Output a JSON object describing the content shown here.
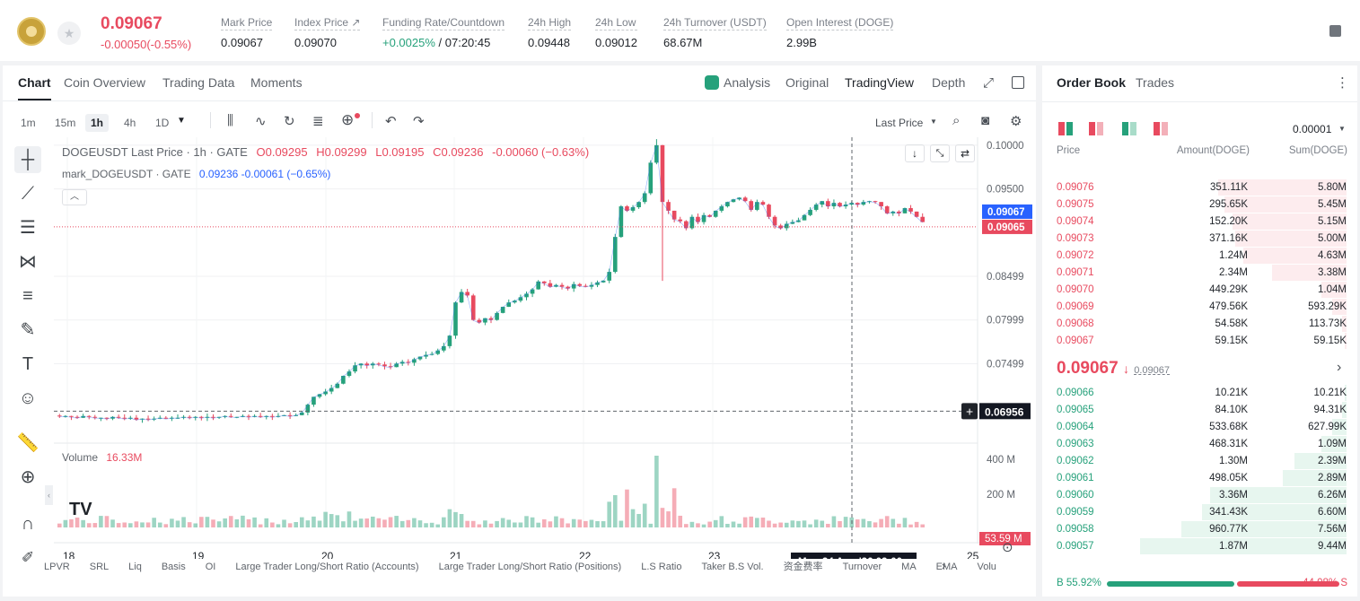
{
  "header": {
    "price": "0.09067",
    "change": "-0.00050(-0.55%)",
    "stats": [
      {
        "label": "Mark Price",
        "value": "0.09067"
      },
      {
        "label": "Index Price ↗",
        "value": "0.09070"
      },
      {
        "label": "Funding Rate/Countdown",
        "value_up": "+0.0025%",
        "value": " / 07:20:45"
      },
      {
        "label": "24h High",
        "value": "0.09448"
      },
      {
        "label": "24h Low",
        "value": "0.09012"
      },
      {
        "label": "24h Turnover (USDT)",
        "value": "68.67M"
      },
      {
        "label": "Open Interest (DOGE)",
        "value": "2.99B"
      }
    ]
  },
  "chart_tabs": [
    "Chart",
    "Coin Overview",
    "Trading Data",
    "Moments"
  ],
  "view_tabs": [
    "Analysis",
    "Original",
    "TradingView",
    "Depth"
  ],
  "intervals": [
    "1m",
    "15m",
    "1h",
    "4h",
    "1D"
  ],
  "last_price_select": "Last Price",
  "legend": {
    "symbol": "DOGEUSDT Last Price · 1h · GATE",
    "o": "O0.09295",
    "h": "H0.09299",
    "l": "L0.09195",
    "c": "C0.09236",
    "chg": "-0.00060 (−0.63%)",
    "mark": "mark_DOGEUSDT · GATE",
    "mark_vals": "0.09236  -0.00061 (−0.65%)",
    "volume_label": "Volume",
    "volume_val": "16.33M"
  },
  "chart_data": {
    "type": "candlestick",
    "x_labels": [
      "18",
      "19",
      "20",
      "21",
      "22",
      "23",
      "25"
    ],
    "y_labels": [
      "0.10000",
      "0.09500",
      "0.08499",
      "0.07999",
      "0.07499"
    ],
    "volume_labels": [
      "400 M",
      "200 M"
    ],
    "price_tags": [
      "0.09067",
      "0.09065"
    ],
    "crosshair_price": "0.06956",
    "crosshair_vol": "53.59 M",
    "crosshair_time": "Mon 24 Aug '26    02:00",
    "ylim": [
      0.066,
      0.1005
    ],
    "close_path": [
      0.069,
      0.069,
      0.0689,
      0.0688,
      0.069,
      0.0689,
      0.0688,
      0.0688,
      0.0687,
      0.0689,
      0.0688,
      0.0687,
      0.0688,
      0.0686,
      0.0687,
      0.0686,
      0.0687,
      0.0688,
      0.0687,
      0.0688,
      0.0688,
      0.0689,
      0.0688,
      0.0689,
      0.0688,
      0.0689,
      0.0688,
      0.0689,
      0.069,
      0.0689,
      0.0689,
      0.069,
      0.0689,
      0.069,
      0.0689,
      0.069,
      0.0689,
      0.069,
      0.0691,
      0.069,
      0.0691,
      0.0694,
      0.0703,
      0.0712,
      0.0715,
      0.0718,
      0.0722,
      0.0727,
      0.0736,
      0.0741,
      0.0748,
      0.075,
      0.0748,
      0.075,
      0.0749,
      0.0747,
      0.0746,
      0.075,
      0.0752,
      0.0751,
      0.0755,
      0.0758,
      0.076,
      0.0761,
      0.0765,
      0.077,
      0.0782,
      0.082,
      0.0832,
      0.0828,
      0.08,
      0.0797,
      0.0802,
      0.08,
      0.0808,
      0.0815,
      0.082,
      0.0822,
      0.0826,
      0.083,
      0.0835,
      0.0844,
      0.0842,
      0.0838,
      0.084,
      0.0838,
      0.0836,
      0.0841,
      0.0839,
      0.0838,
      0.084,
      0.0843,
      0.0845,
      0.0855,
      0.0895,
      0.093,
      0.0925,
      0.0929,
      0.0935,
      0.0945,
      0.098,
      0.1,
      0.0935,
      0.0925,
      0.0915,
      0.0913,
      0.0905,
      0.0918,
      0.0912,
      0.092,
      0.0918,
      0.0925,
      0.093,
      0.0935,
      0.0938,
      0.094,
      0.0936,
      0.0926,
      0.0935,
      0.0932,
      0.0918,
      0.0908,
      0.0905,
      0.091,
      0.0912,
      0.0914,
      0.092,
      0.0926,
      0.0932,
      0.0936,
      0.093,
      0.0934,
      0.093,
      0.0932,
      0.0934,
      0.0932,
      0.0935,
      0.0936,
      0.0935,
      0.093,
      0.0922,
      0.0924,
      0.0922,
      0.0928,
      0.0924,
      0.0918,
      0.0912
    ]
  },
  "bottom_indicators": [
    "LPVR",
    "SRL",
    "Liq",
    "Basis",
    "OI",
    "Large Trader Long/Short Ratio (Accounts)",
    "Large Trader Long/Short Ratio (Positions)",
    "L.S Ratio",
    "Taker B.S Vol.",
    "资金费率",
    "Turnover",
    "MA",
    "EMA",
    "Volu"
  ],
  "orderbook": {
    "tabs": [
      "Order Book",
      "Trades"
    ],
    "precision": "0.00001",
    "columns": [
      "Price",
      "Amount(DOGE)",
      "Sum(DOGE)"
    ],
    "asks": [
      {
        "p": "0.09076",
        "a": "351.11K",
        "s": "5.80M",
        "d": 0.62
      },
      {
        "p": "0.09075",
        "a": "295.65K",
        "s": "5.45M",
        "d": 0.59
      },
      {
        "p": "0.09074",
        "a": "152.20K",
        "s": "5.15M",
        "d": 0.55
      },
      {
        "p": "0.09073",
        "a": "371.16K",
        "s": "5.00M",
        "d": 0.54
      },
      {
        "p": "0.09072",
        "a": "1.24M",
        "s": "4.63M",
        "d": 0.5
      },
      {
        "p": "0.09071",
        "a": "2.34M",
        "s": "3.38M",
        "d": 0.36
      },
      {
        "p": "0.09070",
        "a": "449.29K",
        "s": "1.04M",
        "d": 0.12
      },
      {
        "p": "0.09069",
        "a": "479.56K",
        "s": "593.29K",
        "d": 0.07
      },
      {
        "p": "0.09068",
        "a": "54.58K",
        "s": "113.73K",
        "d": 0.02
      },
      {
        "p": "0.09067",
        "a": "59.15K",
        "s": "59.15K",
        "d": 0.01
      }
    ],
    "mid_price": "0.09067",
    "mid_arrow": "↓",
    "mid_mark": "0.09067",
    "bids": [
      {
        "p": "0.09066",
        "a": "10.21K",
        "s": "10.21K",
        "d": 0.01
      },
      {
        "p": "0.09065",
        "a": "84.10K",
        "s": "94.31K",
        "d": 0.02
      },
      {
        "p": "0.09064",
        "a": "533.68K",
        "s": "627.99K",
        "d": 0.07
      },
      {
        "p": "0.09063",
        "a": "468.31K",
        "s": "1.09M",
        "d": 0.12
      },
      {
        "p": "0.09062",
        "a": "1.30M",
        "s": "2.39M",
        "d": 0.25
      },
      {
        "p": "0.09061",
        "a": "498.05K",
        "s": "2.89M",
        "d": 0.31
      },
      {
        "p": "0.09060",
        "a": "3.36M",
        "s": "6.26M",
        "d": 0.66
      },
      {
        "p": "0.09059",
        "a": "341.43K",
        "s": "6.60M",
        "d": 0.7
      },
      {
        "p": "0.09058",
        "a": "960.77K",
        "s": "7.56M",
        "d": 0.8
      },
      {
        "p": "0.09057",
        "a": "1.87M",
        "s": "9.44M",
        "d": 1.0
      }
    ],
    "buy_pct": "B 55.92%",
    "sell_pct": "44.08% S",
    "buy_ratio": 0.5592
  },
  "colors": {
    "up": "#26a17b",
    "down": "#e84a5f"
  }
}
